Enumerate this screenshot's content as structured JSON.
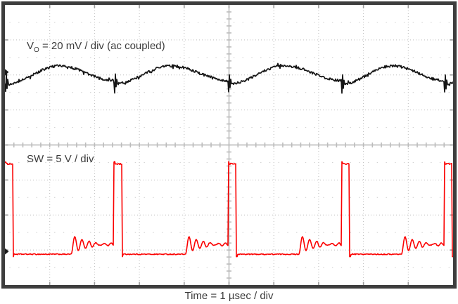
{
  "labels": {
    "vo": {
      "prefix": "V",
      "sub": "O",
      "suffix": " = 20 mV / div (ac coupled)"
    },
    "sw": "SW = 5 V / div",
    "time": "Time = 1 µsec / div"
  },
  "colors": {
    "background": "#ffffff",
    "border": "#3d3d3d",
    "grid_major": "#bdbdbd",
    "grid_half_dots": "#d2d2d2",
    "axis": "#a0a0a0",
    "axis_tick": "#bcbcbc",
    "border_tick": "#9a9a9a",
    "label_text": "#3c3c3c",
    "vo_trace": "#161616",
    "sw_trace": "#fb0000",
    "marker": "#1a1a1a"
  },
  "chart_data": {
    "type": "line",
    "title": "",
    "x_axis": {
      "label": "Time = 1 µsec / div",
      "us_per_div": 1,
      "divisions": 10,
      "range_us": [
        0,
        10
      ]
    },
    "y_axis": {
      "divisions": 8,
      "minor_per_div": 5
    },
    "graticule": {
      "h_divisions": 10,
      "v_divisions": 8,
      "style": "oscilloscope dotted graticule, solid center axes with 1/5-division minor ticks, half-division dot rows"
    },
    "switching_frequency_khz": 400,
    "series": [
      {
        "id": "vo",
        "name": "VO output voltage ripple (ac coupled)",
        "scale_label": "20 mV / div",
        "mv_per_div": 20,
        "zero_marker_div_above_center": 2.08,
        "waveform": "periodic ripple hump synchronized to switching, ~10 mV p-p, narrow switching spikes at each SW rising edge",
        "ripple_min_mv": -6.8,
        "ripple_peak_mv": 3.6,
        "ripple_end_mv": -4.8,
        "peak_at_fraction_of_period": 0.5,
        "switch_spike_mv": [
          0,
          -5,
          5.6,
          -2,
          2,
          0
        ],
        "noise_mv": 0.7
      },
      {
        "id": "sw",
        "name": "SW switch-node voltage",
        "scale_label": "5 V / div",
        "v_per_div": 5,
        "zero_marker_div_below_center": 3.04,
        "waveform": "DCM buck switch node: ~0.18 us pulse to ~12.5 V, diode conduction at ~-0.4 V, decaying ring settling to ~1 V before next pulse",
        "high_v": 12.5,
        "top_overshoot_v": 0.25,
        "low_v": -0.4,
        "undershoot_v": -0.75,
        "settle_v": 1.0,
        "pulse_starts_us": [
          0,
          2.43,
          4.98,
          7.51,
          9.8
        ],
        "pulse_width_us": 0.18,
        "ring_lead_us": 0.95,
        "ring_period_us": 0.16,
        "ring_decay_us": 0.35,
        "ring_amplitude_v": 1.4,
        "settle_ripple_v": 0.15,
        "low_noise_v": 0.07,
        "top_noise_v": 0.1
      }
    ]
  }
}
